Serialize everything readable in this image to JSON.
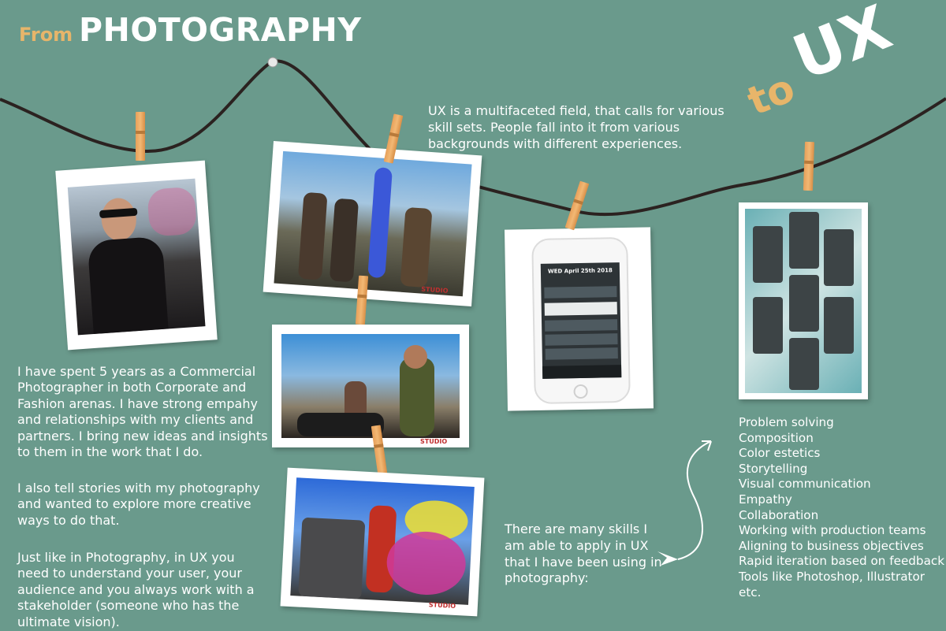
{
  "title": {
    "from": "From",
    "main": "PHOTOGRAPHY",
    "to": "to",
    "ux": "UX"
  },
  "intro": "UX is a multifaceted field, that calls for various skill sets. People fall into it from various backgrounds with different experiences.",
  "paragraphs": [
    "I have spent 5 years as a Commercial Photographer in both Corporate and Fashion arenas. I have strong empahy and relationships with my clients and partners. I bring new ideas and insights to them in the work that I do.",
    "I also tell stories with my photography and wanted to explore more creative ways to do that.",
    "Just like in Photography, in UX you need to understand your user, your audience and you always work with a stakeholder (someone who has the ultimate vision)."
  ],
  "skills_intro": "There are many skills I am able to apply in UX that I have been using in photography:",
  "skills": [
    "Problem solving",
    "Composition",
    "Color estetics",
    "Storytelling",
    "Visual communication",
    "Empathy",
    "Collaboration",
    "Working with production teams",
    "Aligning to business objectives",
    "Rapid iteration based on feedback",
    "Tools like Photoshop, Illustrator",
    "etc."
  ],
  "app_mockup": {
    "date": "WED April 25th 2018"
  },
  "studio_logo": "STUDIO",
  "colors": {
    "background": "#6a9a8c",
    "accent": "#e7b56a",
    "text": "#ffffff"
  }
}
